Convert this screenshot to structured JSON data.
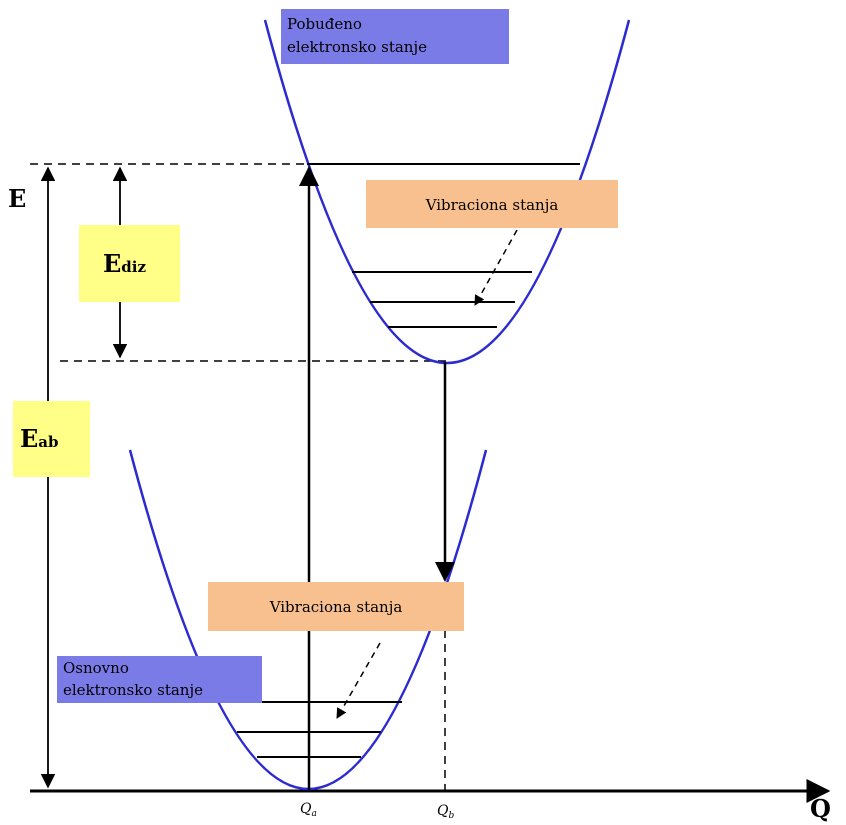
{
  "axes": {
    "y_label": "E",
    "x_label": "Q",
    "q_a": "Q",
    "q_a_sub": "a",
    "q_b": "Q",
    "q_b_sub": "b"
  },
  "labels": {
    "excited_state_line1": "Pobuđeno",
    "excited_state_line2": "elektronsko stanje",
    "ground_state_line1": "Osnovno",
    "ground_state_line2": "elektronsko stanje",
    "vib_states_upper": "Vibraciona stanja",
    "vib_states_lower": "Vibraciona stanja",
    "ediz_main": "E",
    "ediz_sub": "diz",
    "eab_main": "E",
    "eab_sub": "ab"
  },
  "colors": {
    "curve": "#2b2bcf",
    "blue_label_bg": "#7b7be8",
    "orange_label_bg": "#f9c08f",
    "yellow_label_bg": "#ffff88",
    "line": "#000000"
  }
}
